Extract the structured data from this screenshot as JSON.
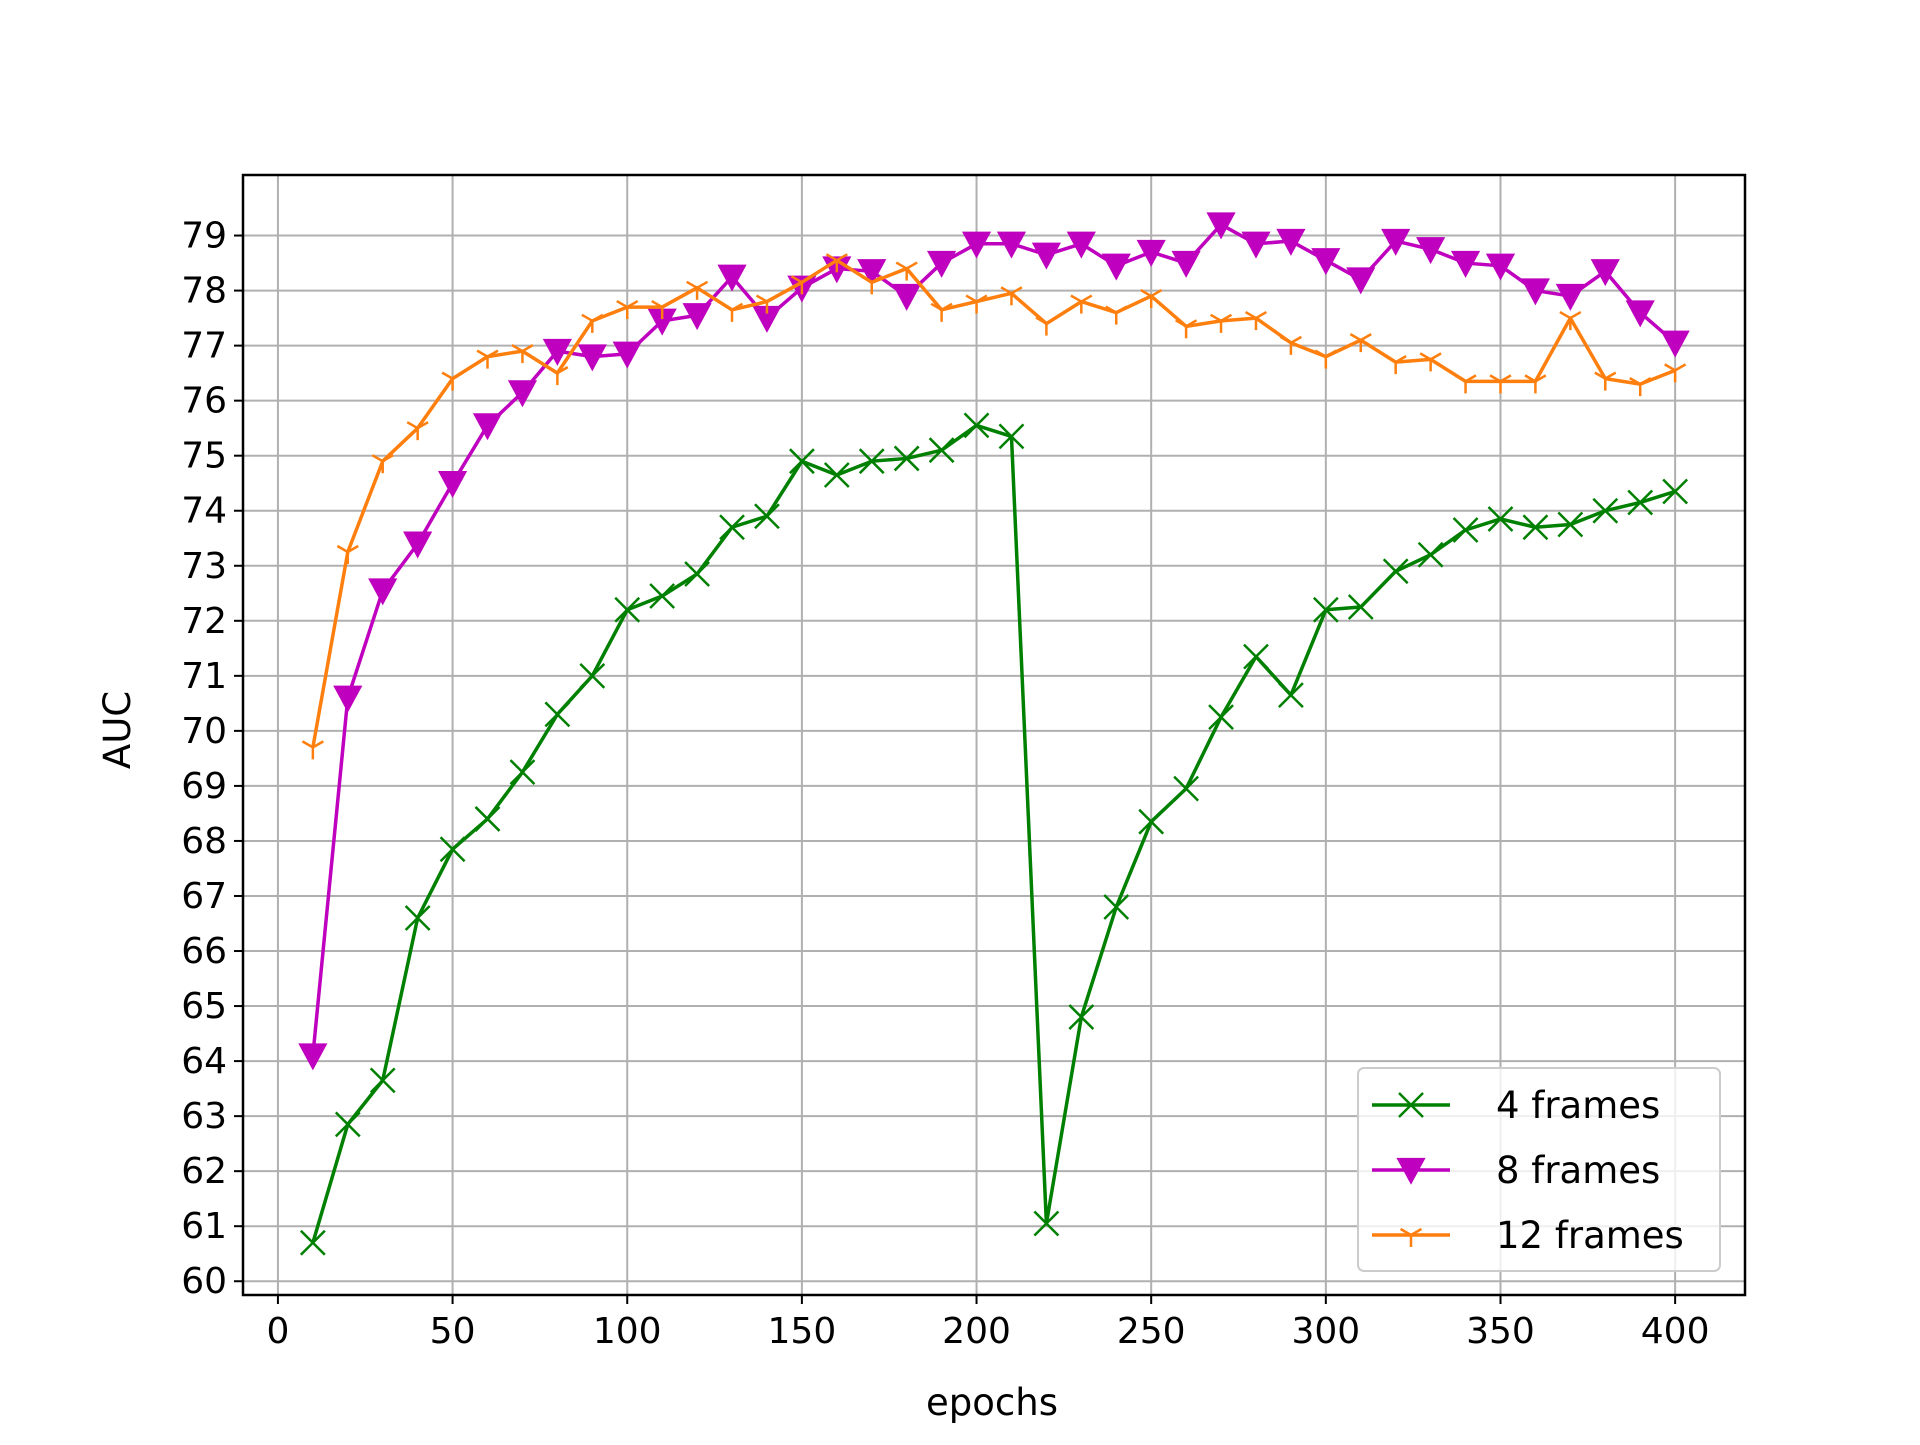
{
  "chart_data": {
    "type": "line",
    "title": "",
    "xlabel": "epochs",
    "ylabel": "AUC",
    "xlim": [
      -10,
      420
    ],
    "ylim": [
      59.75,
      80.1
    ],
    "xticks": [
      0,
      50,
      100,
      150,
      200,
      250,
      300,
      350,
      400
    ],
    "yticks": [
      60,
      61,
      62,
      63,
      64,
      65,
      66,
      67,
      68,
      69,
      70,
      71,
      72,
      73,
      74,
      75,
      76,
      77,
      78,
      79
    ],
    "grid": true,
    "legend_position": "lower right",
    "x": [
      10,
      20,
      30,
      40,
      50,
      60,
      70,
      80,
      90,
      100,
      110,
      120,
      130,
      140,
      150,
      160,
      170,
      180,
      190,
      200,
      210,
      220,
      230,
      240,
      250,
      260,
      270,
      280,
      290,
      300,
      310,
      320,
      330,
      340,
      350,
      360,
      370,
      380,
      390,
      400
    ],
    "series": [
      {
        "name": "4 frames",
        "color": "#008000",
        "marker": "x",
        "values": [
          60.7,
          62.85,
          63.65,
          66.6,
          67.85,
          68.4,
          69.25,
          70.3,
          71.0,
          72.2,
          72.45,
          72.85,
          73.7,
          73.9,
          74.9,
          74.65,
          74.9,
          74.95,
          75.1,
          75.55,
          75.35,
          61.05,
          64.8,
          66.8,
          68.35,
          68.95,
          70.25,
          71.35,
          70.65,
          72.2,
          72.25,
          72.9,
          73.2,
          73.65,
          73.85,
          73.7,
          73.75,
          74.0,
          74.15,
          74.35
        ]
      },
      {
        "name": "8 frames",
        "color": "#bf00bf",
        "marker": "v",
        "values": [
          64.1,
          70.6,
          72.55,
          73.4,
          74.5,
          75.55,
          76.15,
          76.9,
          76.8,
          76.85,
          77.45,
          77.55,
          78.25,
          77.5,
          78.05,
          78.4,
          78.35,
          77.9,
          78.5,
          78.85,
          78.85,
          78.65,
          78.85,
          78.45,
          78.7,
          78.5,
          79.2,
          78.85,
          78.9,
          78.55,
          78.2,
          78.9,
          78.75,
          78.5,
          78.45,
          78.0,
          77.9,
          78.35,
          77.6,
          77.05
        ]
      },
      {
        "name": "12 frames",
        "color": "#ff7f0e",
        "marker": "1",
        "values": [
          69.7,
          73.25,
          74.9,
          75.5,
          76.4,
          76.8,
          76.9,
          76.5,
          77.45,
          77.7,
          77.7,
          78.05,
          77.65,
          77.8,
          78.15,
          78.55,
          78.15,
          78.4,
          77.65,
          77.8,
          77.95,
          77.4,
          77.8,
          77.6,
          77.9,
          77.35,
          77.45,
          77.5,
          77.05,
          76.8,
          77.1,
          76.7,
          76.75,
          76.35,
          76.35,
          76.35,
          77.5,
          76.4,
          76.3,
          76.55
        ]
      }
    ]
  }
}
